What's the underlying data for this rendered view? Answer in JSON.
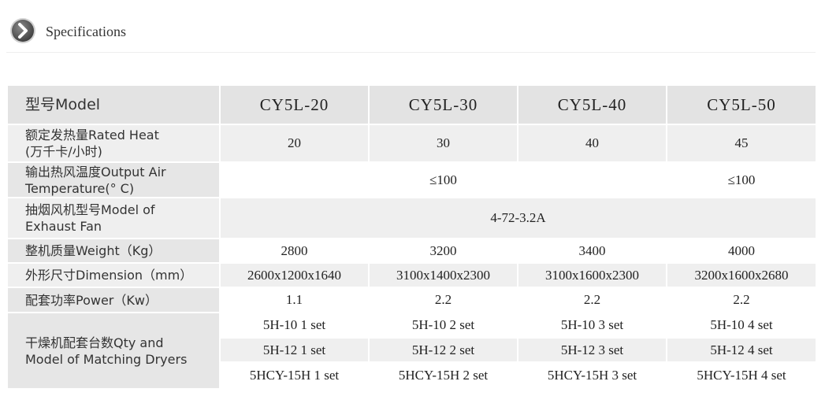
{
  "header": {
    "title": "Specifications"
  },
  "table": {
    "rows": [
      {
        "label": [
          "型号Model"
        ],
        "cells": [
          "CY5L-20",
          "CY5L-30",
          "CY5L-40",
          "CY5L-50"
        ]
      },
      {
        "label": [
          "额定发热量Rated Heat",
          "(万千卡/小时)"
        ],
        "cells": [
          20,
          30,
          40,
          45
        ]
      },
      {
        "label": [
          "输出热风温度Output Air",
          "Temperature(° C)"
        ],
        "cells": [
          "≤100",
          "≤100"
        ]
      },
      {
        "label": [
          "抽烟风机型号Model of",
          "Exhaust Fan"
        ],
        "cells": [
          "4-72-3.2A"
        ]
      },
      {
        "label": [
          "整机质量Weight（Kg）"
        ],
        "cells": [
          2800,
          3200,
          3400,
          4000
        ]
      },
      {
        "label": [
          "外形尺寸Dimension（mm）"
        ],
        "cells": [
          "2600x1200x1640",
          "3100x1400x2300",
          "3100x1600x2300",
          "3200x1600x2680"
        ]
      },
      {
        "label": [
          "配套功率Power（Kw）"
        ],
        "cells": [
          1.1,
          2.2,
          2.2,
          2.2
        ]
      },
      {
        "label": [
          "干燥机配套台数Qty and",
          "Model of Matching Dryers"
        ],
        "cells": [
          [
            "5H-10 1 set",
            "5H-12 1 set",
            "5HCY-15H 1 set"
          ],
          [
            "5H-10 2 set",
            "5H-12 2 set",
            "5HCY-15H 2 set"
          ],
          [
            "5H-10 3 set",
            "5H-12 3 set",
            "5HCY-15H 3 set"
          ],
          [
            "5H-10 4 set",
            "5H-12 4 set",
            "5HCY-15H 4 set"
          ]
        ]
      }
    ]
  }
}
